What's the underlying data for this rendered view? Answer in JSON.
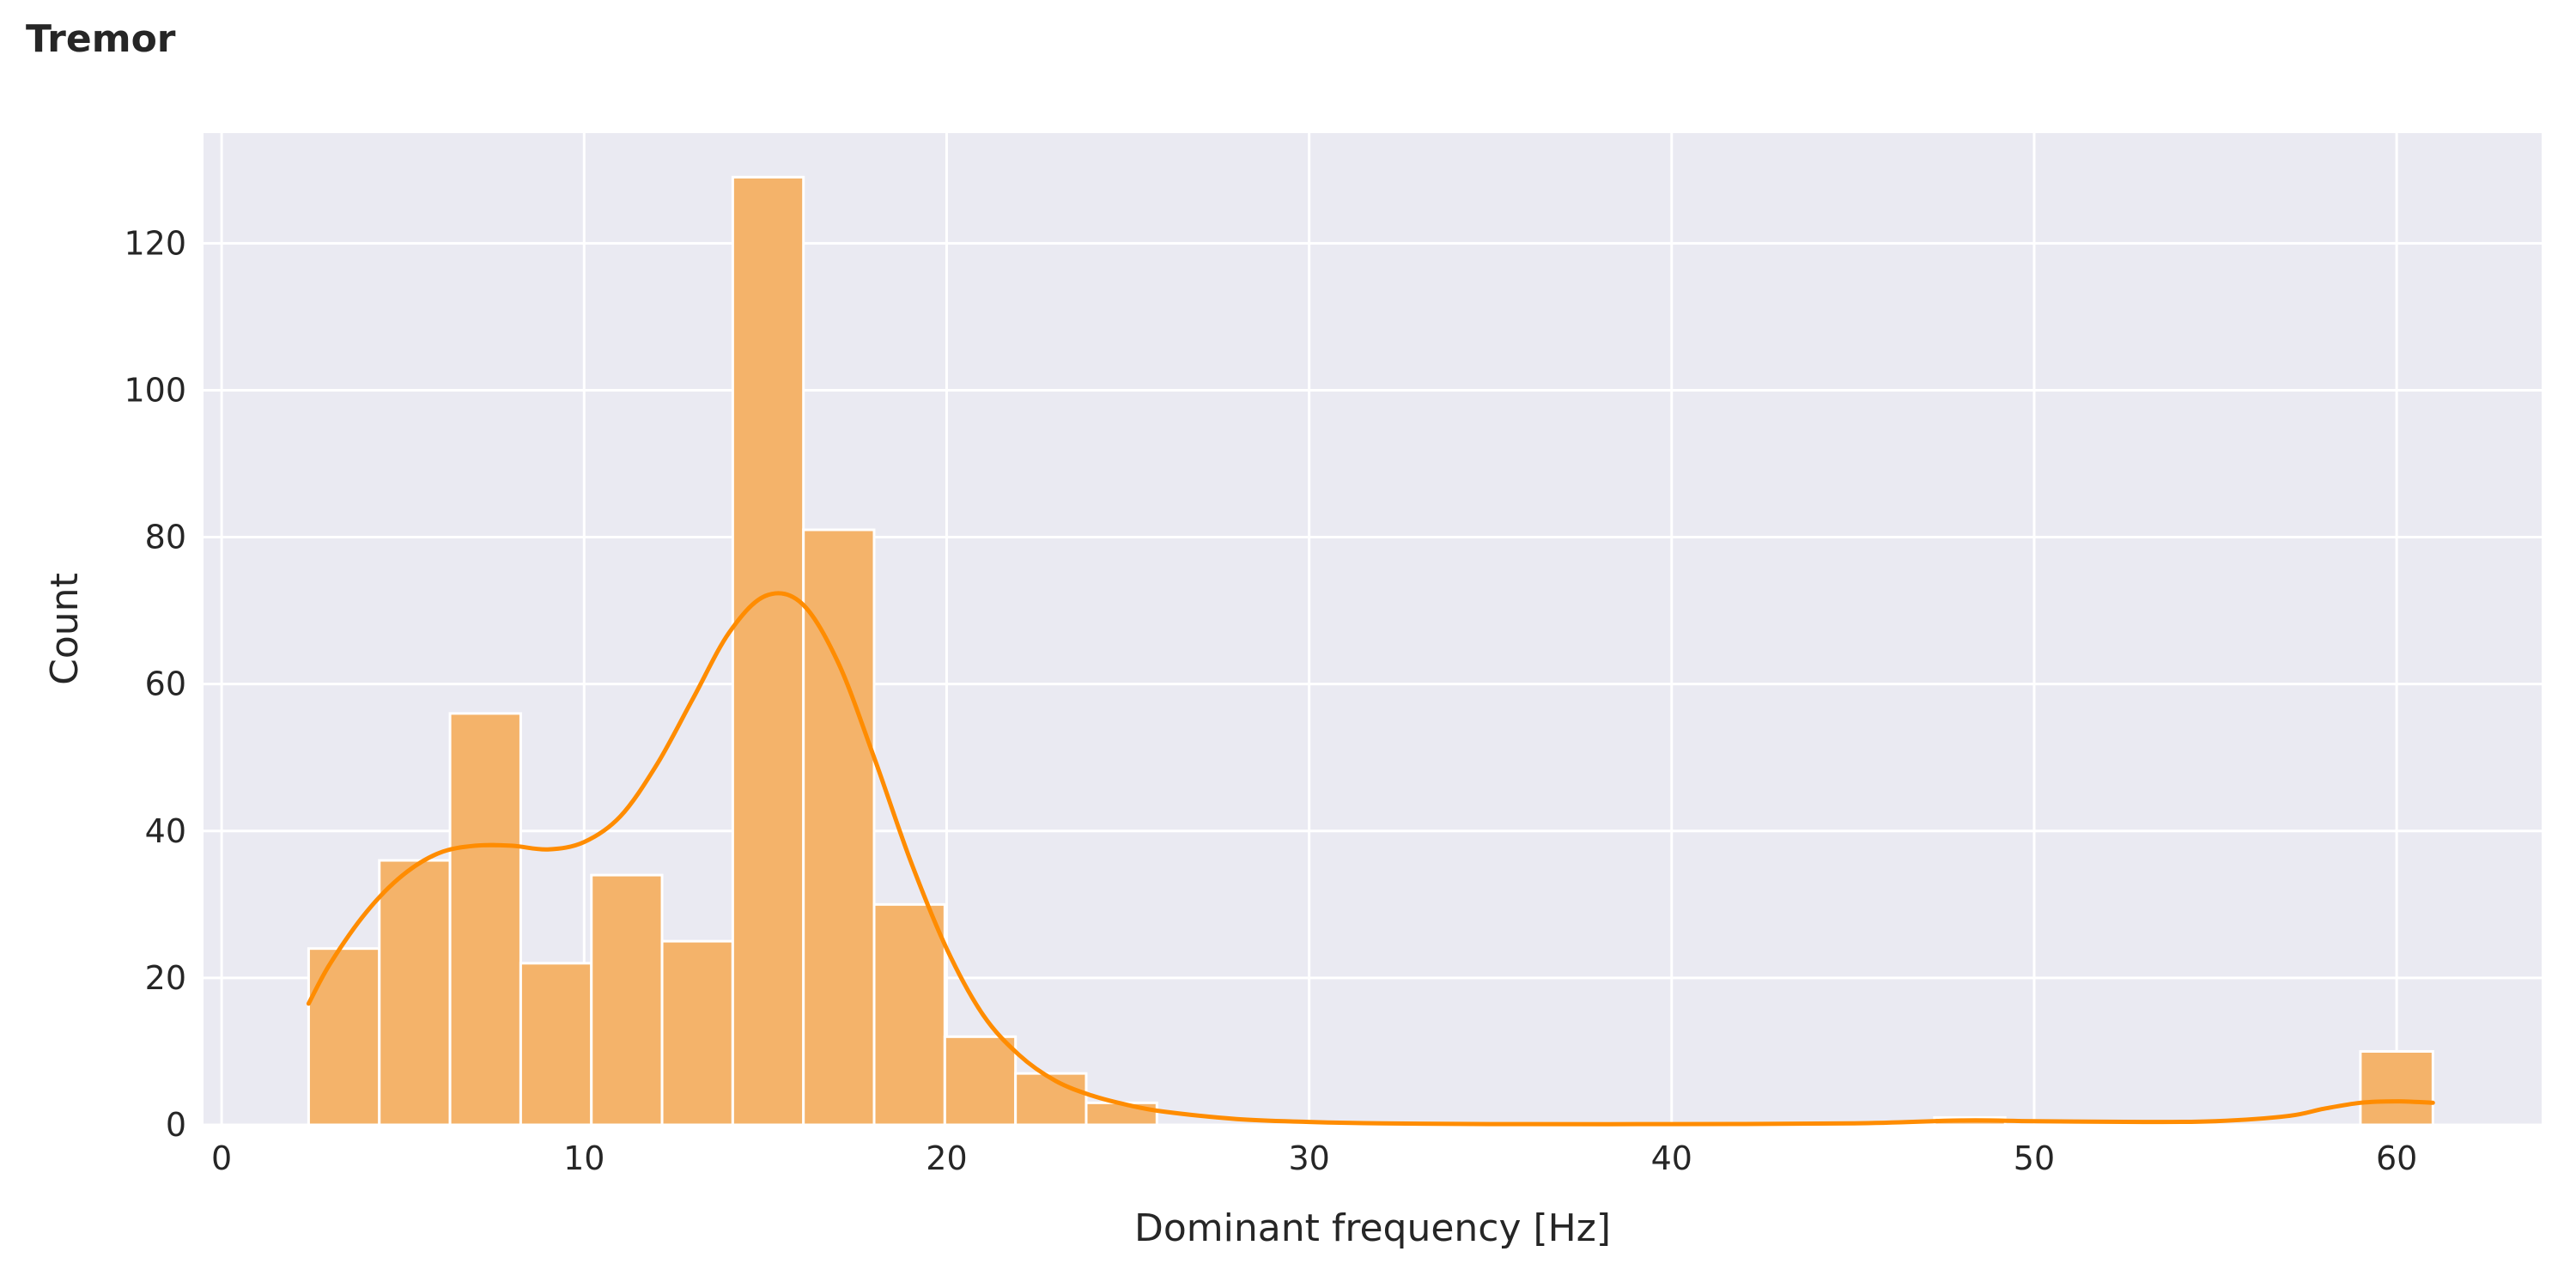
{
  "chart_data": {
    "type": "bar",
    "title": "Tremor",
    "xlabel": "Dominant frequency [Hz]",
    "ylabel": "Count",
    "xlim": [
      -0.5,
      64
    ],
    "ylim": [
      0,
      135
    ],
    "x_ticks": [
      0,
      10,
      20,
      30,
      40,
      50,
      60
    ],
    "y_ticks": [
      0,
      20,
      40,
      60,
      80,
      100,
      120
    ],
    "grid": true,
    "bar_color": "#f4b36a",
    "bar_edge_color": "#ffffff",
    "kde_color": "#ff8c00",
    "background_color": "#eaeaf2",
    "bins": [
      {
        "x0": 2.4,
        "x1": 4.35,
        "count": 24
      },
      {
        "x0": 4.35,
        "x1": 6.3,
        "count": 36
      },
      {
        "x0": 6.3,
        "x1": 8.25,
        "count": 56
      },
      {
        "x0": 8.25,
        "x1": 10.2,
        "count": 22
      },
      {
        "x0": 10.2,
        "x1": 12.15,
        "count": 34
      },
      {
        "x0": 12.15,
        "x1": 14.1,
        "count": 25
      },
      {
        "x0": 14.1,
        "x1": 16.05,
        "count": 129
      },
      {
        "x0": 16.05,
        "x1": 18.0,
        "count": 81
      },
      {
        "x0": 18.0,
        "x1": 19.95,
        "count": 30
      },
      {
        "x0": 19.95,
        "x1": 21.9,
        "count": 12
      },
      {
        "x0": 21.9,
        "x1": 23.85,
        "count": 7
      },
      {
        "x0": 23.85,
        "x1": 25.8,
        "count": 3
      },
      {
        "x0": 25.8,
        "x1": 27.75,
        "count": 0
      },
      {
        "x0": 27.75,
        "x1": 29.7,
        "count": 0
      },
      {
        "x0": 29.7,
        "x1": 31.65,
        "count": 0
      },
      {
        "x0": 47.25,
        "x1": 49.2,
        "count": 1
      },
      {
        "x0": 59.0,
        "x1": 61.0,
        "count": 10
      }
    ],
    "kde": {
      "x": [
        2.4,
        3,
        4,
        5,
        6,
        7,
        8,
        9,
        10,
        11,
        12,
        13,
        14,
        15,
        16,
        17,
        18,
        19,
        20,
        21,
        22,
        23,
        24,
        25,
        26,
        28,
        30,
        32,
        35,
        40,
        45,
        48,
        50,
        53,
        55,
        57,
        58,
        59,
        60,
        61
      ],
      "y": [
        16.5,
        22,
        29,
        34,
        37,
        38,
        38,
        37.5,
        38.5,
        42,
        49,
        58,
        67,
        72,
        71,
        63,
        50,
        36,
        24,
        15,
        9.5,
        6,
        4,
        2.7,
        1.8,
        0.8,
        0.4,
        0.2,
        0.1,
        0.1,
        0.2,
        0.6,
        0.5,
        0.4,
        0.5,
        1.2,
        2.2,
        3,
        3.2,
        3
      ]
    }
  }
}
